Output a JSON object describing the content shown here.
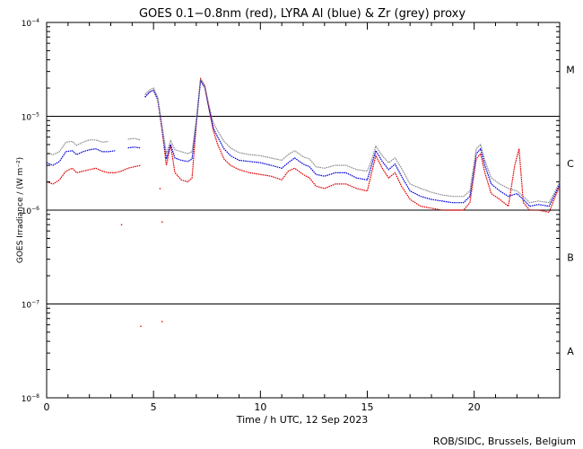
{
  "chart_data": {
    "type": "line",
    "title": "GOES 0.1−0.8nm (red), LYRA Al (blue) & Zr (grey) proxy",
    "xlabel": "Time / h UTC, 12 Sep 2023",
    "ylabel": "GOES Irradiance / (W m⁻²)",
    "x_range": [
      0,
      24
    ],
    "y_range": [
      1e-08,
      0.0001
    ],
    "y_scale": "log",
    "x_ticks": [
      0,
      5,
      10,
      15,
      20
    ],
    "y_ticks": [
      {
        "value": 1e-08,
        "base": "10",
        "exp": "−8"
      },
      {
        "value": 1e-07,
        "base": "10",
        "exp": "−7"
      },
      {
        "value": 1e-06,
        "base": "10",
        "exp": "−6"
      },
      {
        "value": 1e-05,
        "base": "10",
        "exp": "−5"
      },
      {
        "value": 0.0001,
        "base": "10",
        "exp": "−4"
      }
    ],
    "flare_class_lines": [
      1e-07,
      1e-06,
      1e-05
    ],
    "flare_classes": [
      {
        "label": "A",
        "value": 3.16e-08
      },
      {
        "label": "B",
        "value": 3.16e-07
      },
      {
        "label": "C",
        "value": 3.16e-06
      },
      {
        "label": "M",
        "value": 3.16e-05
      }
    ],
    "series": [
      {
        "color": "#e00000",
        "points": [
          [
            0,
            2e-06
          ],
          [
            0.3,
            1.9e-06
          ],
          [
            0.6,
            2.1e-06
          ],
          [
            0.9,
            2.6e-06
          ],
          [
            1.2,
            2.8e-06
          ],
          [
            1.4,
            2.5e-06
          ],
          [
            1.7,
            2.6e-06
          ],
          [
            2.0,
            2.7e-06
          ],
          [
            2.3,
            2.8e-06
          ],
          [
            2.6,
            2.6e-06
          ],
          [
            2.9,
            2.5e-06
          ],
          [
            3.2,
            2.5e-06
          ],
          [
            3.5,
            2.6e-06
          ],
          [
            3.8,
            2.8e-06
          ],
          [
            4.1,
            2.9e-06
          ],
          [
            4.4,
            3e-06
          ],
          null,
          [
            4.6,
            1.6e-05
          ],
          [
            4.8,
            1.8e-05
          ],
          [
            5.0,
            1.9e-05
          ],
          [
            5.2,
            1.5e-05
          ],
          [
            5.4,
            7e-06
          ],
          [
            5.6,
            3e-06
          ],
          [
            5.8,
            5e-06
          ],
          [
            6.0,
            2.5e-06
          ],
          [
            6.3,
            2.1e-06
          ],
          [
            6.6,
            2e-06
          ],
          [
            6.8,
            2.2e-06
          ],
          [
            7.0,
            8e-06
          ],
          [
            7.2,
            2.5e-05
          ],
          [
            7.4,
            2.1e-05
          ],
          [
            7.6,
            1.2e-05
          ],
          [
            7.8,
            7e-06
          ],
          [
            8.0,
            5e-06
          ],
          [
            8.3,
            3.5e-06
          ],
          [
            8.6,
            3e-06
          ],
          [
            9.0,
            2.7e-06
          ],
          [
            9.5,
            2.5e-06
          ],
          [
            10.0,
            2.4e-06
          ],
          [
            10.5,
            2.3e-06
          ],
          [
            11.0,
            2.1e-06
          ],
          [
            11.3,
            2.6e-06
          ],
          [
            11.6,
            2.8e-06
          ],
          [
            12.0,
            2.4e-06
          ],
          [
            12.3,
            2.2e-06
          ],
          [
            12.6,
            1.8e-06
          ],
          [
            13.0,
            1.7e-06
          ],
          [
            13.5,
            1.9e-06
          ],
          [
            14.0,
            1.9e-06
          ],
          [
            14.5,
            1.7e-06
          ],
          [
            15.0,
            1.6e-06
          ],
          [
            15.2,
            2.5e-06
          ],
          [
            15.4,
            3.8e-06
          ],
          [
            15.7,
            2.8e-06
          ],
          [
            16.0,
            2.2e-06
          ],
          [
            16.3,
            2.5e-06
          ],
          [
            16.6,
            1.8e-06
          ],
          [
            17.0,
            1.3e-06
          ],
          [
            17.5,
            1.1e-06
          ],
          [
            18.0,
            1.05e-06
          ],
          [
            18.5,
            1e-06
          ],
          [
            19.0,
            1e-06
          ],
          [
            19.5,
            1e-06
          ],
          [
            19.8,
            1.2e-06
          ],
          [
            20.1,
            3.5e-06
          ],
          [
            20.3,
            4e-06
          ],
          [
            20.5,
            2.5e-06
          ],
          [
            20.8,
            1.5e-06
          ],
          [
            21.2,
            1.3e-06
          ],
          [
            21.6,
            1.1e-06
          ],
          [
            21.9,
            3e-06
          ],
          [
            22.1,
            4.5e-06
          ],
          [
            22.3,
            1.2e-06
          ],
          [
            22.6,
            1e-06
          ],
          [
            23.0,
            1e-06
          ],
          [
            23.5,
            9.5e-07
          ],
          [
            23.8,
            1.4e-06
          ],
          [
            24.0,
            1.8e-06
          ]
        ]
      },
      {
        "color": "#0000dd",
        "points": [
          [
            0,
            3.2e-06
          ],
          [
            0.3,
            3e-06
          ],
          [
            0.6,
            3.3e-06
          ],
          [
            0.9,
            4.2e-06
          ],
          [
            1.2,
            4.3e-06
          ],
          [
            1.4,
            3.9e-06
          ],
          [
            1.7,
            4.2e-06
          ],
          [
            2.0,
            4.4e-06
          ],
          [
            2.3,
            4.5e-06
          ],
          [
            2.6,
            4.2e-06
          ],
          [
            2.9,
            4.2e-06
          ],
          [
            3.2,
            4.3e-06
          ],
          null,
          [
            3.8,
            4.6e-06
          ],
          [
            4.1,
            4.7e-06
          ],
          [
            4.4,
            4.6e-06
          ],
          null,
          [
            4.6,
            1.6e-05
          ],
          [
            4.8,
            1.8e-05
          ],
          [
            5.0,
            1.9e-05
          ],
          [
            5.2,
            1.5e-05
          ],
          [
            5.4,
            7.5e-06
          ],
          [
            5.6,
            3.5e-06
          ],
          [
            5.8,
            5e-06
          ],
          [
            6.0,
            3.6e-06
          ],
          [
            6.3,
            3.4e-06
          ],
          [
            6.6,
            3.3e-06
          ],
          [
            6.8,
            3.5e-06
          ],
          [
            7.0,
            8.5e-06
          ],
          [
            7.2,
            2.4e-05
          ],
          [
            7.4,
            2e-05
          ],
          [
            7.6,
            1.2e-05
          ],
          [
            7.8,
            7.5e-06
          ],
          [
            8.0,
            6e-06
          ],
          [
            8.3,
            4.5e-06
          ],
          [
            8.6,
            3.8e-06
          ],
          [
            9.0,
            3.4e-06
          ],
          [
            9.5,
            3.3e-06
          ],
          [
            10.0,
            3.2e-06
          ],
          [
            10.5,
            3e-06
          ],
          [
            11.0,
            2.8e-06
          ],
          [
            11.3,
            3.2e-06
          ],
          [
            11.6,
            3.6e-06
          ],
          [
            12.0,
            3.1e-06
          ],
          [
            12.3,
            2.9e-06
          ],
          [
            12.6,
            2.4e-06
          ],
          [
            13.0,
            2.3e-06
          ],
          [
            13.5,
            2.5e-06
          ],
          [
            14.0,
            2.5e-06
          ],
          [
            14.5,
            2.2e-06
          ],
          [
            15.0,
            2.1e-06
          ],
          [
            15.2,
            3e-06
          ],
          [
            15.4,
            4.3e-06
          ],
          [
            15.7,
            3.3e-06
          ],
          [
            16.0,
            2.7e-06
          ],
          [
            16.3,
            3.1e-06
          ],
          [
            16.6,
            2.3e-06
          ],
          [
            17.0,
            1.6e-06
          ],
          [
            17.5,
            1.4e-06
          ],
          [
            18.0,
            1.3e-06
          ],
          [
            18.5,
            1.25e-06
          ],
          [
            19.0,
            1.2e-06
          ],
          [
            19.5,
            1.2e-06
          ],
          [
            19.8,
            1.4e-06
          ],
          [
            20.1,
            4e-06
          ],
          [
            20.3,
            4.5e-06
          ],
          [
            20.5,
            3e-06
          ],
          [
            20.8,
            1.9e-06
          ],
          [
            21.2,
            1.6e-06
          ],
          [
            21.6,
            1.4e-06
          ],
          [
            22.0,
            1.5e-06
          ],
          [
            22.3,
            1.3e-06
          ],
          [
            22.6,
            1.1e-06
          ],
          [
            23.0,
            1.15e-06
          ],
          [
            23.5,
            1.1e-06
          ],
          [
            23.8,
            1.5e-06
          ],
          [
            24.0,
            1.9e-06
          ]
        ]
      },
      {
        "color": "#8c8c8c",
        "points": [
          [
            0,
            4.1e-06
          ],
          [
            0.3,
            3.9e-06
          ],
          [
            0.6,
            4.2e-06
          ],
          [
            0.9,
            5.3e-06
          ],
          [
            1.2,
            5.4e-06
          ],
          [
            1.4,
            4.9e-06
          ],
          [
            1.7,
            5.3e-06
          ],
          [
            2.0,
            5.6e-06
          ],
          [
            2.3,
            5.6e-06
          ],
          [
            2.6,
            5.3e-06
          ],
          [
            2.9,
            5.4e-06
          ],
          null,
          [
            3.8,
            5.7e-06
          ],
          [
            4.1,
            5.8e-06
          ],
          [
            4.4,
            5.6e-06
          ],
          null,
          [
            4.6,
            1.7e-05
          ],
          [
            4.8,
            1.9e-05
          ],
          [
            5.0,
            2e-05
          ],
          [
            5.2,
            1.6e-05
          ],
          [
            5.4,
            8e-06
          ],
          [
            5.6,
            4e-06
          ],
          [
            5.8,
            5.5e-06
          ],
          [
            6.0,
            4.4e-06
          ],
          [
            6.3,
            4.2e-06
          ],
          [
            6.6,
            4e-06
          ],
          [
            6.8,
            4.2e-06
          ],
          [
            7.0,
            9e-06
          ],
          [
            7.2,
            2.5e-05
          ],
          [
            7.4,
            2.1e-05
          ],
          [
            7.6,
            1.3e-05
          ],
          [
            7.8,
            8.5e-06
          ],
          [
            8.0,
            7e-06
          ],
          [
            8.3,
            5.4e-06
          ],
          [
            8.6,
            4.6e-06
          ],
          [
            9.0,
            4.1e-06
          ],
          [
            9.5,
            3.9e-06
          ],
          [
            10.0,
            3.8e-06
          ],
          [
            10.5,
            3.6e-06
          ],
          [
            11.0,
            3.4e-06
          ],
          [
            11.3,
            3.9e-06
          ],
          [
            11.6,
            4.3e-06
          ],
          [
            12.0,
            3.7e-06
          ],
          [
            12.3,
            3.5e-06
          ],
          [
            12.6,
            2.9e-06
          ],
          [
            13.0,
            2.8e-06
          ],
          [
            13.5,
            3e-06
          ],
          [
            14.0,
            3e-06
          ],
          [
            14.5,
            2.7e-06
          ],
          [
            15.0,
            2.6e-06
          ],
          [
            15.2,
            3.4e-06
          ],
          [
            15.4,
            4.8e-06
          ],
          [
            15.7,
            3.8e-06
          ],
          [
            16.0,
            3.2e-06
          ],
          [
            16.3,
            3.6e-06
          ],
          [
            16.6,
            2.8e-06
          ],
          [
            17.0,
            1.9e-06
          ],
          [
            17.5,
            1.7e-06
          ],
          [
            18.0,
            1.55e-06
          ],
          [
            18.5,
            1.45e-06
          ],
          [
            19.0,
            1.4e-06
          ],
          [
            19.5,
            1.4e-06
          ],
          [
            19.8,
            1.6e-06
          ],
          [
            20.1,
            4.5e-06
          ],
          [
            20.3,
            5e-06
          ],
          [
            20.5,
            3.4e-06
          ],
          [
            20.8,
            2.2e-06
          ],
          [
            21.2,
            1.9e-06
          ],
          [
            21.6,
            1.7e-06
          ],
          [
            22.0,
            1.6e-06
          ],
          [
            22.3,
            1.4e-06
          ],
          [
            22.6,
            1.2e-06
          ],
          [
            23.0,
            1.25e-06
          ],
          [
            23.5,
            1.2e-06
          ],
          [
            23.8,
            1.6e-06
          ],
          [
            24.0,
            2e-06
          ]
        ]
      }
    ],
    "stray_points": [
      {
        "color": "#e00000",
        "points": [
          [
            3.5,
            7e-07
          ],
          [
            4.4,
            5.8e-08
          ],
          [
            5.4,
            6.5e-08
          ],
          [
            5.4,
            7.5e-07
          ],
          [
            5.3,
            1.7e-06
          ]
        ]
      }
    ],
    "credit": "ROB/SIDC, Brussels, Belgium"
  }
}
